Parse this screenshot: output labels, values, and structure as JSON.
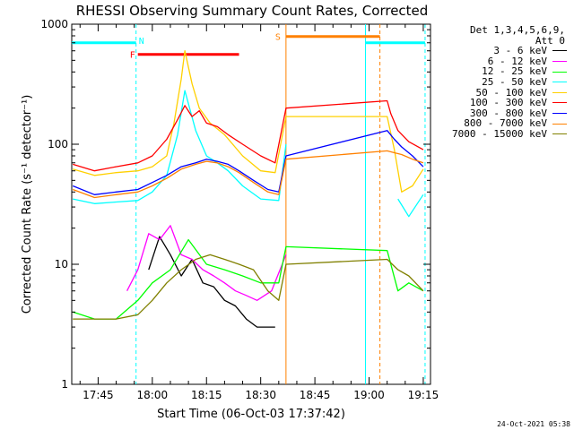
{
  "chart_data": {
    "type": "line",
    "title": "RHESSI Observing Summary Count Rates, Corrected",
    "xlabel": "Start Time (06-Oct-03 17:37:42)",
    "ylabel": "Corrected Count Rate (s⁻¹ detector⁻¹)",
    "y_scale": "log",
    "ylim": [
      1,
      1000
    ],
    "y_ticks": [
      1,
      10,
      100,
      1000
    ],
    "y_tick_labels": [
      "1",
      "10",
      "100",
      "1000"
    ],
    "xlim": [
      "17:37:42",
      "19:17:00"
    ],
    "x_ticks": [
      "17:45",
      "18:00",
      "18:15",
      "18:30",
      "18:45",
      "19:00",
      "19:15"
    ],
    "grid": false,
    "legend_position": "right",
    "legend_header": [
      "Det 1,3,4,5,6,9,",
      "Att 0"
    ],
    "series": [
      {
        "name": "3 - 6 keV",
        "color": "#000000",
        "x": [
          "17:38",
          "17:47",
          "17:56",
          "17:59",
          "18:02",
          "18:05",
          "18:08",
          "18:11",
          "18:14",
          "18:17",
          "18:20",
          "18:23",
          "18:26",
          "18:29",
          "18:33",
          "18:34",
          "18:37"
        ],
        "y": [
          null,
          null,
          null,
          9,
          17,
          12,
          8,
          11,
          7,
          6.5,
          5,
          4.5,
          3.5,
          3,
          3,
          3,
          null
        ]
      },
      {
        "name": "6 - 12 keV",
        "color": "#ff00ff",
        "x": [
          "17:38",
          "17:47",
          "17:53",
          "17:56",
          "17:59",
          "18:02",
          "18:05",
          "18:08",
          "18:11",
          "18:14",
          "18:17",
          "18:20",
          "18:23",
          "18:26",
          "18:29",
          "18:33",
          "18:37",
          "19:05",
          "19:15"
        ],
        "y": [
          null,
          null,
          6,
          9,
          18,
          16,
          21,
          12,
          11,
          9,
          8,
          7,
          6,
          5.5,
          5,
          6,
          12,
          null,
          null
        ]
      },
      {
        "name": "12 - 25 keV",
        "color": "#00ff00",
        "x": [
          "17:38",
          "17:44",
          "17:50",
          "17:56",
          "18:00",
          "18:05",
          "18:10",
          "18:15",
          "18:20",
          "18:25",
          "18:30",
          "18:35",
          "18:37",
          "19:05",
          "19:08",
          "19:11",
          "19:15"
        ],
        "y": [
          4,
          3.5,
          3.5,
          5,
          7,
          9,
          16,
          10,
          9,
          8,
          7,
          7,
          14,
          13,
          6,
          7,
          6
        ]
      },
      {
        "name": "25 - 50 keV",
        "color": "#00ffff",
        "x": [
          "17:38",
          "17:44",
          "17:50",
          "17:56",
          "18:00",
          "18:04",
          "18:07",
          "18:09",
          "18:12",
          "18:15",
          "18:18",
          "18:21",
          "18:25",
          "18:30",
          "18:35",
          "18:37",
          "19:05",
          "19:08",
          "19:11",
          "19:15"
        ],
        "y": [
          35,
          32,
          33,
          34,
          40,
          55,
          120,
          280,
          130,
          80,
          70,
          60,
          45,
          35,
          34,
          100,
          null,
          35,
          25,
          38
        ]
      },
      {
        "name": "50 - 100 keV",
        "color": "#ffd000",
        "x": [
          "17:38",
          "17:44",
          "17:50",
          "17:56",
          "18:00",
          "18:04",
          "18:06",
          "18:08",
          "18:09",
          "18:11",
          "18:13",
          "18:16",
          "18:20",
          "18:25",
          "18:30",
          "18:34",
          "18:37",
          "19:05",
          "19:07",
          "19:09",
          "19:12",
          "19:15"
        ],
        "y": [
          62,
          55,
          58,
          60,
          65,
          80,
          150,
          350,
          600,
          320,
          200,
          150,
          120,
          80,
          60,
          58,
          170,
          170,
          90,
          40,
          45,
          62
        ]
      },
      {
        "name": "100 - 300 keV",
        "color": "#ff0000",
        "x": [
          "17:38",
          "17:44",
          "17:50",
          "17:56",
          "18:00",
          "18:04",
          "18:07",
          "18:09",
          "18:11",
          "18:13",
          "18:15",
          "18:18",
          "18:21",
          "18:25",
          "18:30",
          "18:34",
          "18:37",
          "19:05",
          "19:06",
          "19:08",
          "19:11",
          "19:15"
        ],
        "y": [
          68,
          60,
          65,
          70,
          80,
          110,
          160,
          210,
          170,
          190,
          150,
          140,
          120,
          100,
          80,
          70,
          200,
          230,
          180,
          130,
          105,
          90
        ]
      },
      {
        "name": "300 - 800 keV",
        "color": "#0000ff",
        "x": [
          "17:38",
          "17:44",
          "17:50",
          "17:56",
          "18:00",
          "18:04",
          "18:08",
          "18:12",
          "18:15",
          "18:18",
          "18:21",
          "18:24",
          "18:28",
          "18:32",
          "18:35",
          "18:37",
          "19:05",
          "19:07",
          "19:09",
          "19:12",
          "19:15"
        ],
        "y": [
          45,
          38,
          40,
          42,
          48,
          55,
          65,
          70,
          75,
          72,
          68,
          60,
          50,
          42,
          40,
          80,
          130,
          110,
          95,
          80,
          65
        ]
      },
      {
        "name": "800 - 7000 keV",
        "color": "#ff8000",
        "x": [
          "17:38",
          "17:44",
          "17:50",
          "17:56",
          "18:00",
          "18:04",
          "18:08",
          "18:12",
          "18:15",
          "18:18",
          "18:21",
          "18:24",
          "18:28",
          "18:32",
          "18:35",
          "18:37",
          "19:05",
          "19:07",
          "19:09",
          "19:12",
          "19:15"
        ],
        "y": [
          42,
          36,
          38,
          40,
          45,
          52,
          62,
          68,
          72,
          70,
          65,
          58,
          48,
          40,
          38,
          75,
          88,
          85,
          82,
          75,
          70
        ]
      },
      {
        "name": "7000 - 15000 keV",
        "color": "#808000",
        "x": [
          "17:38",
          "17:44",
          "17:50",
          "17:56",
          "18:00",
          "18:04",
          "18:08",
          "18:12",
          "18:16",
          "18:20",
          "18:24",
          "18:28",
          "18:32",
          "18:35",
          "18:37",
          "19:05",
          "19:08",
          "19:11",
          "19:15"
        ],
        "y": [
          3.5,
          3.5,
          3.5,
          3.8,
          5,
          7,
          9,
          11,
          12,
          11,
          10,
          9,
          6,
          5,
          10,
          11,
          9,
          8,
          6
        ]
      }
    ],
    "annotations": [
      {
        "label": "N",
        "color": "#00ffff",
        "x_start": "17:37:42",
        "x_end": "17:55:30",
        "y": 700
      },
      {
        "label": "F",
        "color": "#ff0000",
        "x_start": "17:56",
        "x_end": "18:24",
        "y": 560
      },
      {
        "label": "S",
        "color": "#ff8000",
        "x_start": "18:37",
        "x_end": "19:03",
        "y": 790
      },
      {
        "label": "",
        "color": "#00ffff",
        "x_start": "18:59",
        "x_end": "19:15:30",
        "y": 700
      }
    ],
    "vertical_lines": [
      {
        "x": "17:55:30",
        "color": "#00ffff",
        "dashed": true
      },
      {
        "x": "18:37",
        "color": "#ff8000",
        "dashed": false
      },
      {
        "x": "18:59",
        "color": "#00ffff",
        "dashed": false
      },
      {
        "x": "19:03",
        "color": "#ff8000",
        "dashed": true
      },
      {
        "x": "19:15:30",
        "color": "#00ffff",
        "dashed": true
      }
    ]
  },
  "footer_timestamp": "24-Oct-2021 05:38"
}
